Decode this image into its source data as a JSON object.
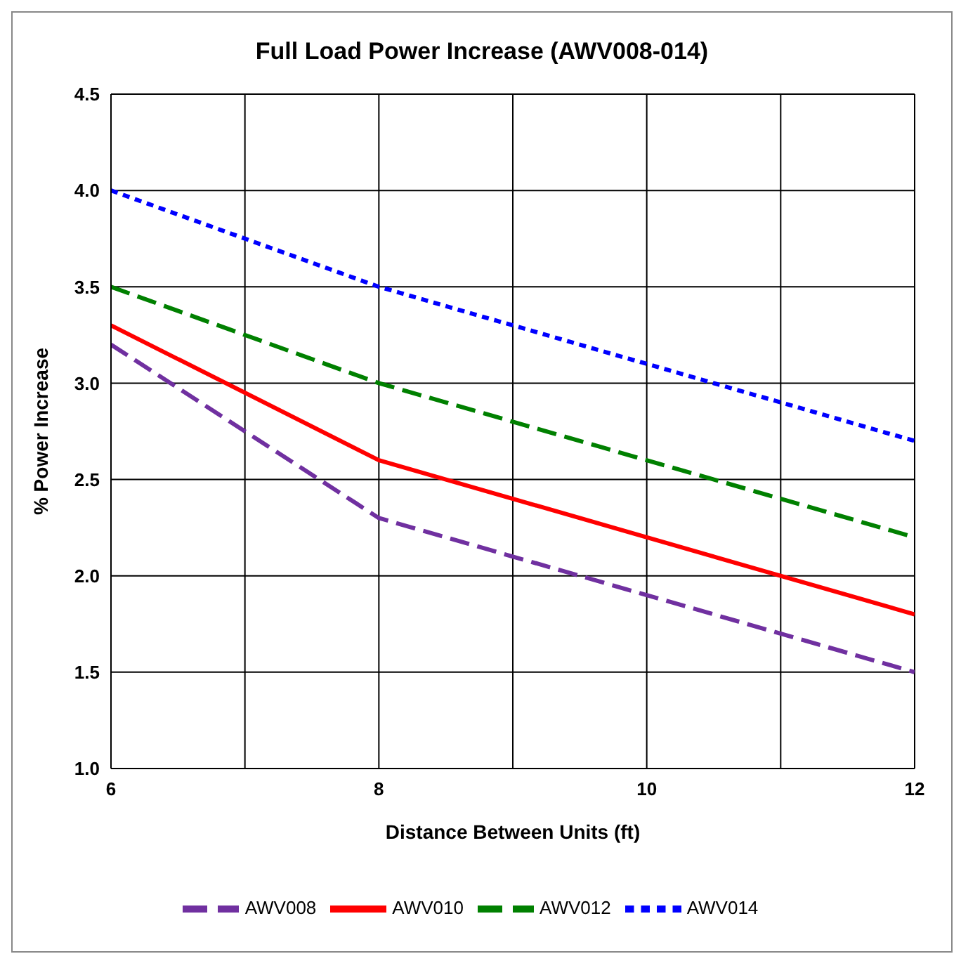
{
  "chart_data": {
    "type": "line",
    "title": "Full Load Power Increase (AWV008-014)",
    "xlabel": "Distance Between Units (ft)",
    "ylabel": "% Power Increase",
    "xlim": [
      6,
      12
    ],
    "xticks": [
      6,
      {
        "value": 7,
        "label": null
      },
      8,
      {
        "value": 9,
        "label": null
      },
      10,
      {
        "value": 11,
        "label": null
      },
      12
    ],
    "ylim": [
      1,
      4.5
    ],
    "yticks": [
      {
        "value": 1,
        "label": "1.0"
      },
      {
        "value": 1.5,
        "label": "1.5"
      },
      {
        "value": 2,
        "label": "2.0"
      },
      {
        "value": 2.5,
        "label": "2.5"
      },
      {
        "value": 3,
        "label": "3.0"
      },
      {
        "value": 3.5,
        "label": "3.5"
      },
      {
        "value": 4,
        "label": "4.0"
      },
      {
        "value": 4.5,
        "label": "4.5"
      }
    ],
    "grid": true,
    "legend": "bottom",
    "marker": "none",
    "series": [
      {
        "name": "AWV008",
        "color": "#7030a0",
        "line_style": "dashed",
        "x": [
          6,
          8,
          12
        ],
        "values": [
          3.2,
          2.3,
          1.5
        ]
      },
      {
        "name": "AWV010",
        "color": "#ff0000",
        "line_style": "solid",
        "x": [
          6,
          8,
          12
        ],
        "values": [
          3.3,
          2.6,
          1.8
        ]
      },
      {
        "name": "AWV012",
        "color": "#008000",
        "line_style": "dashed",
        "x": [
          6,
          8,
          12
        ],
        "values": [
          3.5,
          3.0,
          2.2
        ]
      },
      {
        "name": "AWV014",
        "color": "#0000ff",
        "line_style": "dotted",
        "x": [
          6,
          8,
          12
        ],
        "values": [
          4.0,
          3.5,
          2.7
        ]
      }
    ]
  }
}
